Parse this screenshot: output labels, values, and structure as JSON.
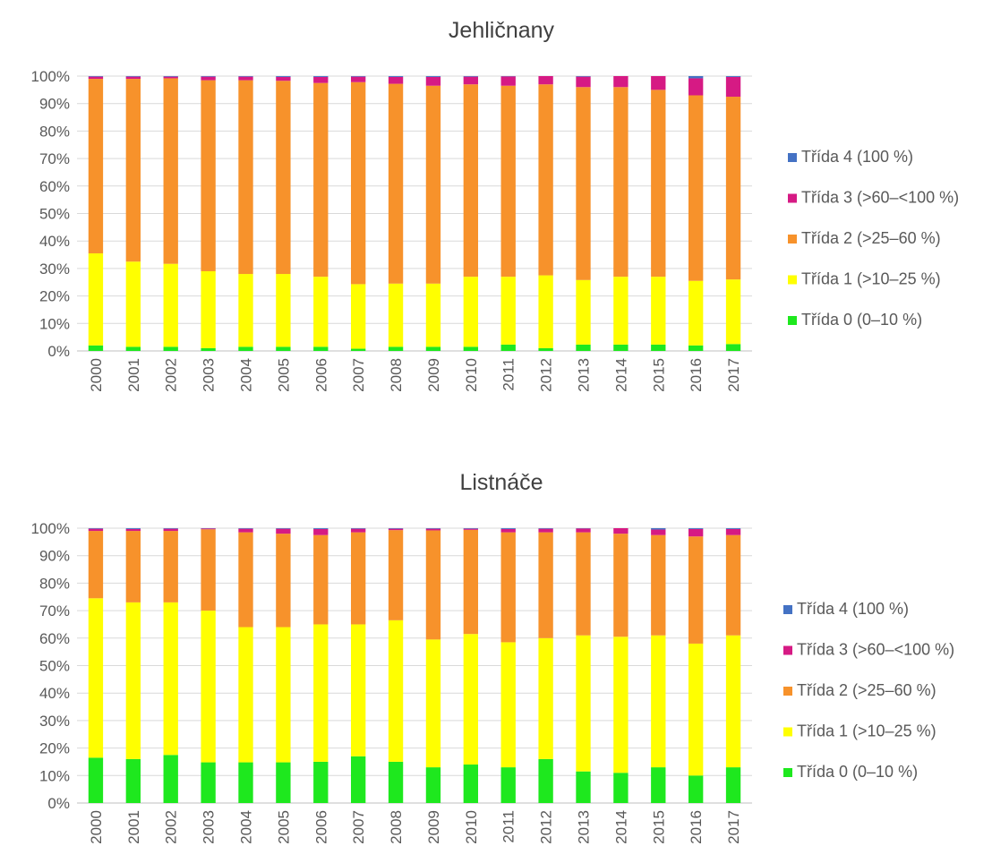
{
  "chart_data": [
    {
      "type": "bar",
      "stacked": true,
      "title": "Jehličnany",
      "categories": [
        "2000",
        "2001",
        "2002",
        "2003",
        "2004",
        "2005",
        "2006",
        "2007",
        "2008",
        "2009",
        "2010",
        "2011",
        "2012",
        "2013",
        "2014",
        "2015",
        "2016",
        "2017"
      ],
      "ylim": [
        0,
        100
      ],
      "yticks": [
        "0%",
        "10%",
        "20%",
        "30%",
        "40%",
        "50%",
        "60%",
        "70%",
        "80%",
        "90%",
        "100%"
      ],
      "grid": true,
      "legend_position": "right",
      "series": [
        {
          "name": "Třída 0 (0–10 %)",
          "color": "#1EE81E",
          "values": [
            2.0,
            1.5,
            1.5,
            1.0,
            1.5,
            1.5,
            1.5,
            0.8,
            1.5,
            1.5,
            1.5,
            2.3,
            1.0,
            2.3,
            2.3,
            2.3,
            2.0,
            2.5
          ]
        },
        {
          "name": "Třída 1 (>10–25 %)",
          "color": "#FFFF00",
          "values": [
            33.5,
            31.0,
            30.2,
            28.0,
            26.5,
            26.5,
            25.5,
            23.5,
            23.0,
            23.0,
            25.5,
            24.7,
            26.5,
            23.5,
            24.7,
            24.7,
            23.5,
            23.5
          ]
        },
        {
          "name": "Třída 2 (>25–60 %)",
          "color": "#F7922B",
          "values": [
            63.5,
            66.5,
            67.5,
            69.5,
            70.5,
            70.3,
            70.5,
            73.5,
            72.7,
            72.0,
            70.0,
            69.5,
            69.5,
            70.2,
            69.0,
            68.0,
            67.5,
            66.5
          ]
        },
        {
          "name": "Třída 3 (>60–<100 %)",
          "color": "#D61A84",
          "values": [
            0.8,
            0.8,
            0.6,
            1.3,
            1.3,
            1.4,
            2.2,
            2.0,
            2.5,
            3.2,
            2.8,
            3.4,
            3.0,
            3.8,
            4.0,
            5.0,
            6.2,
            7.2
          ]
        },
        {
          "name": "Třída 4 (100 %)",
          "color": "#4472C4",
          "values": [
            0.2,
            0.2,
            0.2,
            0.2,
            0.2,
            0.3,
            0.3,
            0.2,
            0.3,
            0.3,
            0.2,
            0.1,
            0.0,
            0.2,
            0.0,
            0.0,
            0.8,
            0.3
          ]
        }
      ]
    },
    {
      "type": "bar",
      "stacked": true,
      "title": "Listnáče",
      "categories": [
        "2000",
        "2001",
        "2002",
        "2003",
        "2004",
        "2005",
        "2006",
        "2007",
        "2008",
        "2009",
        "2010",
        "2011",
        "2012",
        "2013",
        "2014",
        "2015",
        "2016",
        "2017"
      ],
      "ylim": [
        0,
        100
      ],
      "yticks": [
        "0%",
        "10%",
        "20%",
        "30%",
        "40%",
        "50%",
        "60%",
        "70%",
        "80%",
        "90%",
        "100%"
      ],
      "grid": true,
      "legend_position": "right",
      "series": [
        {
          "name": "Třída 0 (0–10 %)",
          "color": "#1EE81E",
          "values": [
            16.5,
            16.0,
            17.5,
            14.8,
            14.8,
            14.8,
            15.0,
            17.0,
            15.0,
            13.0,
            14.0,
            13.0,
            16.0,
            11.5,
            11.0,
            13.0,
            10.0,
            13.0
          ]
        },
        {
          "name": "Třída 1 (>10–25 %)",
          "color": "#FFFF00",
          "values": [
            58.0,
            57.0,
            55.5,
            55.2,
            49.2,
            49.2,
            50.0,
            48.0,
            51.5,
            46.5,
            47.5,
            45.5,
            44.0,
            49.5,
            49.5,
            48.0,
            48.0,
            48.0
          ]
        },
        {
          "name": "Třída 2 (>25–60 %)",
          "color": "#F7922B",
          "values": [
            24.5,
            26.0,
            26.0,
            29.6,
            34.5,
            34.0,
            32.5,
            33.5,
            32.8,
            39.7,
            37.9,
            40.0,
            38.5,
            37.5,
            37.5,
            36.5,
            39.0,
            36.5
          ]
        },
        {
          "name": "Třída 3 (>60–<100 %)",
          "color": "#D61A84",
          "values": [
            0.8,
            0.7,
            0.8,
            0.3,
            1.3,
            1.8,
            2.2,
            1.3,
            0.5,
            0.6,
            0.4,
            1.2,
            1.3,
            1.4,
            2.0,
            2.0,
            2.7,
            2.2
          ]
        },
        {
          "name": "Třída 4 (100 %)",
          "color": "#4472C4",
          "values": [
            0.2,
            0.3,
            0.2,
            0.1,
            0.2,
            0.2,
            0.3,
            0.2,
            0.2,
            0.2,
            0.2,
            0.3,
            0.2,
            0.1,
            0.0,
            0.5,
            0.3,
            0.3
          ]
        }
      ]
    }
  ]
}
